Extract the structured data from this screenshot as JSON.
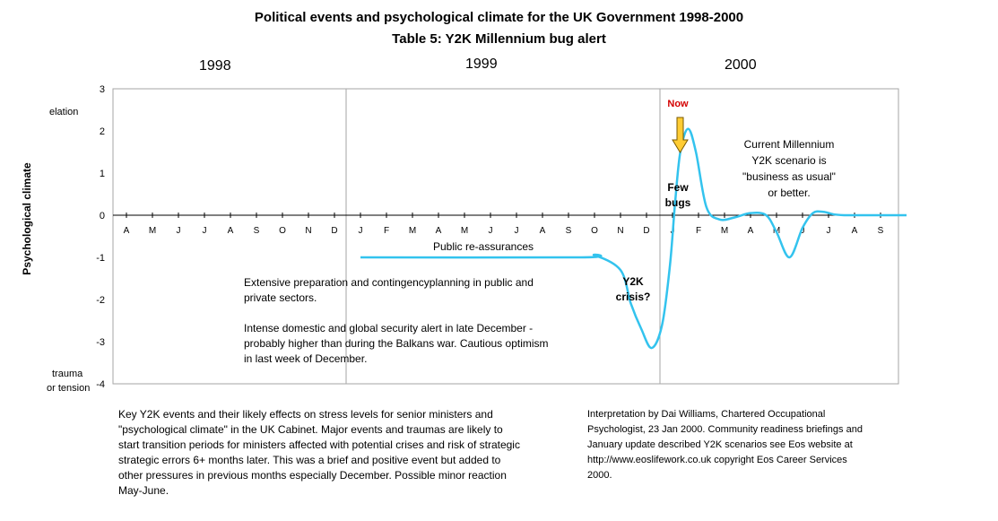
{
  "chart_data": {
    "type": "line",
    "title": "Political events and psychological climate for the UK Government 1998-2000",
    "subtitle": "Table 5:  Y2K Millennium bug alert",
    "years": [
      "1998",
      "1999",
      "2000"
    ],
    "ylabel": "Psychological climate",
    "ylim": [
      -4,
      3
    ],
    "yticks": [
      3,
      2,
      1,
      0,
      -1,
      -2,
      -3,
      -4
    ],
    "y_annotations": {
      "top": "elation",
      "bottom_line1": "trauma",
      "bottom_line2": "or tension"
    },
    "month_labels": [
      "A",
      "M",
      "J",
      "J",
      "A",
      "S",
      "O",
      "N",
      "D",
      "J",
      "F",
      "M",
      "A",
      "M",
      "J",
      "J",
      "A",
      "S",
      "O",
      "N",
      "D",
      "J",
      "F",
      "M",
      "A",
      "M",
      "J",
      "J",
      "A",
      "S"
    ],
    "series": [
      {
        "name": "Psychological climate",
        "color": "#33c3ee",
        "x": [
          9,
          17.5,
          18,
          19,
          19.4,
          19.8,
          20.2,
          20.6,
          20.9,
          21.1,
          21.3,
          21.6,
          21.9,
          22.3,
          22.8,
          23.4,
          24,
          24.6,
          25,
          25.5,
          26,
          26.4,
          26.8,
          27.2,
          27.6,
          28,
          28.5,
          29,
          29.5,
          30
        ],
        "values": [
          -1,
          -1,
          -0.95,
          -1.3,
          -2.1,
          -2.7,
          -3.15,
          -2.6,
          -1.2,
          0.3,
          1.5,
          2.05,
          1.5,
          0.2,
          -0.1,
          -0.05,
          0.05,
          0,
          -0.4,
          -1,
          -0.3,
          0.05,
          0.08,
          0.02,
          0,
          0,
          0,
          0,
          0,
          0
        ]
      }
    ],
    "annotations": {
      "now": "Now",
      "few_bugs_line1": "Few",
      "few_bugs_line2": "bugs",
      "y2k_crisis_line1": "Y2K",
      "y2k_crisis_line2": "crisis?",
      "public_reassurances": "Public re-assurances",
      "scenario_line1": "Current Millennium",
      "scenario_line2": "Y2K scenario is",
      "scenario_line3": "\"business as usual\"",
      "scenario_line4": "or better.",
      "prep_line1": "Extensive preparation and contingencyplanning in public and",
      "prep_line2": "private sectors.",
      "alert_line1": "Intense domestic and global security alert in late December -",
      "alert_line2": "probably higher than during the Balkans war. Cautious optimism",
      "alert_line3": "in last week of December."
    },
    "colors": {
      "line": "#33c3ee",
      "now_label": "#d40000",
      "arrow_fill": "#ffcc33",
      "gridline": "#a6a6a6"
    }
  },
  "footer": {
    "left": "Key  Y2K events and their likely effects on stress levels for senior ministers and \"psychological climate\" in the UK Cabinet. Major events and traumas are likely to start transition periods for ministers affected with potential crises and risk of strategic strategic errors 6+ months later.  This was a brief and positive event but added to other pressures in previous months especially December.  Possible minor reaction May-June.",
    "right": "Interpretation by Dai Williams, Chartered Occupational Psychologist, 23 Jan 2000.    Community readiness briefings and January update described  Y2K scenarios see Eos website at http://www.eoslifework.co.uk copyright Eos Career Services 2000."
  }
}
